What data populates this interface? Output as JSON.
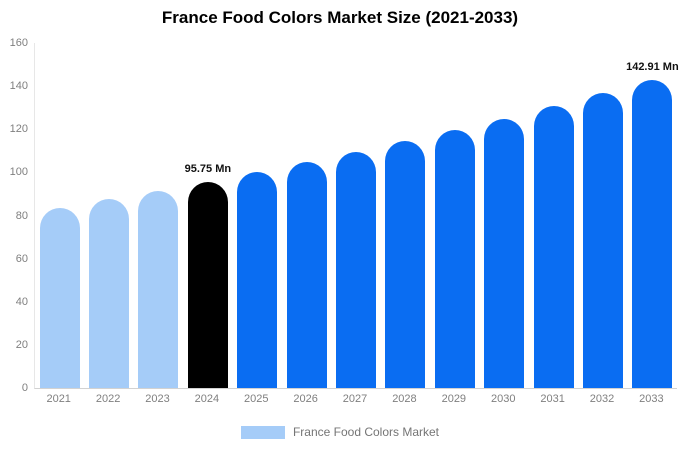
{
  "title": "France Food Colors Market Size (2021-2033)",
  "legend": {
    "label": "France Food Colors Market",
    "swatch_color": "#A5CCF8"
  },
  "colors": {
    "historical_bar": "#A5CCF8",
    "base_year_bar": "#000000",
    "forecast_bar": "#0A6DF2",
    "axis_text": "#7f7f7f",
    "data_label_text": "#111111",
    "y_axis_line": "#e7e7e7",
    "x_axis_line": "#d2d2d2"
  },
  "chart_data": {
    "type": "bar",
    "title": "France Food Colors Market Size (2021-2033)",
    "unit": "Mn",
    "categories": [
      "2021",
      "2022",
      "2023",
      "2024",
      "2025",
      "2026",
      "2027",
      "2028",
      "2029",
      "2030",
      "2031",
      "2032",
      "2033"
    ],
    "values": [
      83.7,
      87.6,
      91.6,
      95.75,
      100.1,
      104.7,
      109.4,
      114.4,
      119.6,
      125.0,
      130.7,
      136.7,
      142.91
    ],
    "bar_colors": [
      "#A5CCF8",
      "#A5CCF8",
      "#A5CCF8",
      "#000000",
      "#0A6DF2",
      "#0A6DF2",
      "#0A6DF2",
      "#0A6DF2",
      "#0A6DF2",
      "#0A6DF2",
      "#0A6DF2",
      "#0A6DF2",
      "#0A6DF2"
    ],
    "bar_labels": [
      null,
      null,
      null,
      "95.75 Mn",
      null,
      null,
      null,
      null,
      null,
      null,
      null,
      null,
      "142.91 Mn"
    ],
    "ylim": [
      0,
      160
    ],
    "yticks": [
      0,
      20,
      40,
      60,
      80,
      100,
      120,
      140,
      160
    ],
    "grid": false,
    "legend": [
      "France Food Colors Market"
    ],
    "legend_position": "bottom"
  }
}
